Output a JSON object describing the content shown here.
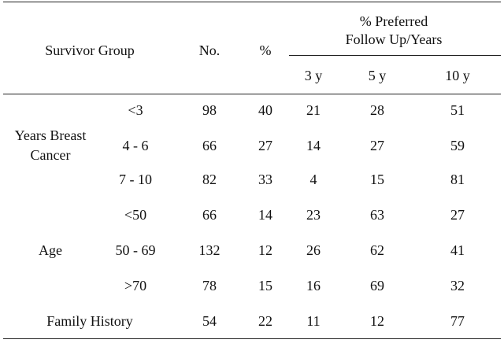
{
  "table": {
    "header": {
      "group": "Survivor Group",
      "no": "No.",
      "pct": "%",
      "preferred_line1": "% Preferred",
      "preferred_line2": "Follow Up/Years",
      "sub": [
        "3 y",
        "5 y",
        "10 y"
      ]
    },
    "groups": [
      {
        "label_line1": "Years Breast",
        "label_line2": "Cancer"
      },
      {
        "label_line1": "Age",
        "label_line2": ""
      },
      {
        "label_line1": "Family History",
        "label_line2": ""
      }
    ],
    "rows": [
      {
        "sub": "<3",
        "no": "98",
        "pct": "40",
        "y3": "21",
        "y5": "28",
        "y10": "51"
      },
      {
        "sub": "4 - 6",
        "no": "66",
        "pct": "27",
        "y3": "14",
        "y5": "27",
        "y10": "59"
      },
      {
        "sub": "7 - 10",
        "no": "82",
        "pct": "33",
        "y3": "4",
        "y5": "15",
        "y10": "81"
      },
      {
        "sub": "<50",
        "no": "66",
        "pct": "14",
        "y3": "23",
        "y5": "63",
        "y10": "27"
      },
      {
        "sub": "50 - 69",
        "no": "132",
        "pct": "12",
        "y3": "26",
        "y5": "62",
        "y10": "41"
      },
      {
        "sub": ">70",
        "no": "78",
        "pct": "15",
        "y3": "16",
        "y5": "69",
        "y10": "32"
      },
      {
        "sub": "",
        "no": "54",
        "pct": "22",
        "y3": "11",
        "y5": "12",
        "y10": "77"
      }
    ]
  }
}
